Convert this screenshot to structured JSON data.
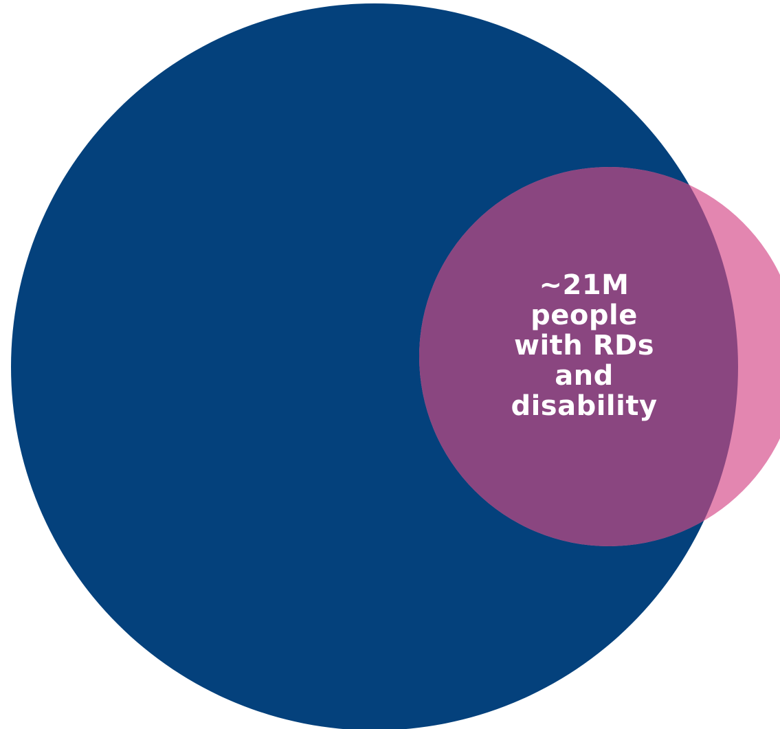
{
  "diagram": {
    "sets": [
      {
        "id": "large-set",
        "color": "#04417c"
      },
      {
        "id": "small-set",
        "color": "#e386b0"
      }
    ],
    "overlap_color": "#8a4680",
    "overlap_label": {
      "lines": [
        "~21M",
        "people",
        "with RDs",
        "and",
        "disability"
      ]
    }
  }
}
